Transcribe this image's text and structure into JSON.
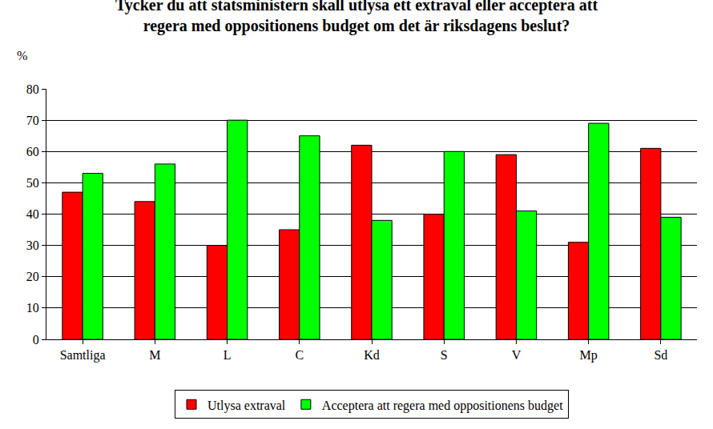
{
  "chart_data": {
    "type": "bar",
    "title": "Tycker du att statsministern skall utlysa ett extraval eller acceptera att\nregera med oppositionens budget om det är riksdagens beslut?",
    "y_label": "%",
    "categories": [
      "Samtliga",
      "M",
      "L",
      "C",
      "Kd",
      "S",
      "V",
      "Mp",
      "Sd"
    ],
    "series": [
      {
        "name": "Utlysa extraval",
        "color": "#ff0000",
        "values": [
          47,
          44,
          30,
          35,
          62,
          40,
          59,
          31,
          61
        ]
      },
      {
        "name": "Acceptera att regera med oppositionens budget",
        "color": "#00ff00",
        "values": [
          53,
          56,
          70,
          65,
          38,
          60,
          41,
          69,
          39
        ]
      }
    ],
    "ylim": [
      0,
      80
    ],
    "yticks": [
      0,
      10,
      20,
      30,
      40,
      50,
      60,
      70,
      80
    ],
    "grid": true,
    "legend": "bottom"
  }
}
